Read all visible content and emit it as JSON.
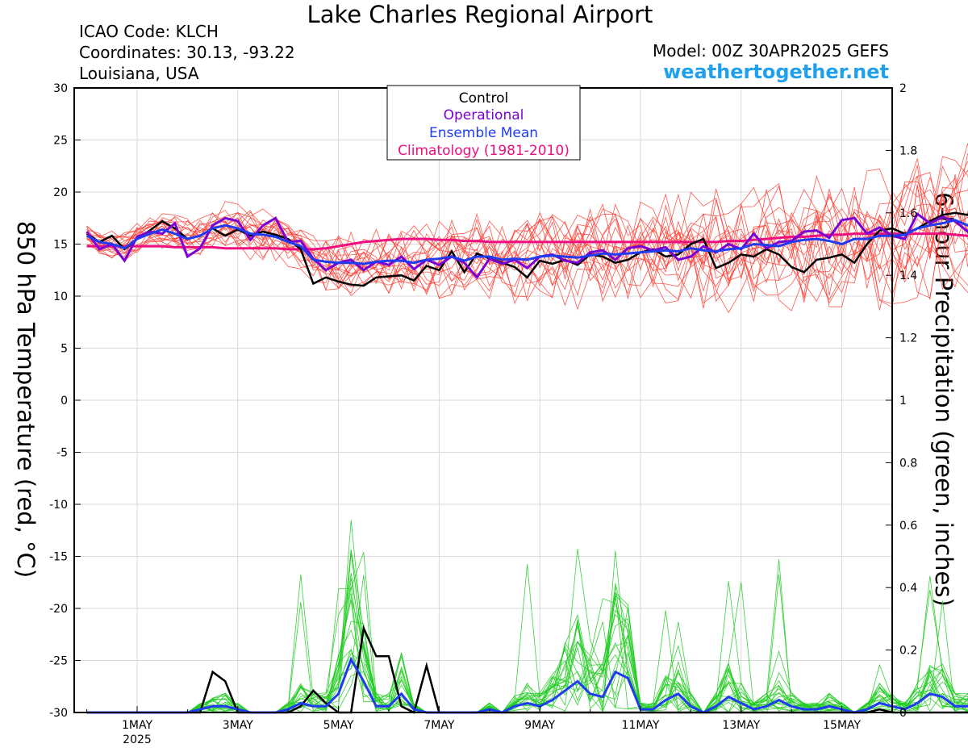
{
  "header": {
    "title": "Lake Charles Regional Airport",
    "icao": "ICAO Code: KLCH",
    "coords": "Coordinates: 30.13, -93.22",
    "region": "Louisiana, USA",
    "model": "Model: 00Z 30APR2025 GEFS",
    "site": "weathertogether.net"
  },
  "colors": {
    "members_temp": "#ff3b30",
    "members_precip": "#22cc22",
    "control": "#000000",
    "operational": "#7a00d6",
    "ensemble_mean": "#1f3cf2",
    "climatology": "#ee0e80"
  },
  "chart_data": {
    "type": "line",
    "ylabel_left": "850 hPa Temperature (red, °C)",
    "ylabel_right": "6-hour Precipitation (green, inches)",
    "ylim_left": [
      -30,
      30
    ],
    "ylim_right": [
      0,
      2
    ],
    "yticks_left": [
      "30",
      "25",
      "20",
      "15",
      "10",
      "5",
      "0",
      "-5",
      "-10",
      "-15",
      "-20",
      "-25",
      "-30"
    ],
    "yticks_right": [
      "2",
      "1.8",
      "1.6",
      "1.4",
      "1.2",
      "1",
      "0.8",
      "0.6",
      "0.4",
      "0.2",
      "0"
    ],
    "xlim_days": [
      0,
      16.25
    ],
    "x_start": "2025-04-30 00Z",
    "x_step_hours": 6,
    "xticks": [
      {
        "day": 1.25,
        "label": "1MAY",
        "sub": "2025"
      },
      {
        "day": 3.25,
        "label": "3MAY",
        "sub": ""
      },
      {
        "day": 5.25,
        "label": "5MAY",
        "sub": ""
      },
      {
        "day": 7.25,
        "label": "7MAY",
        "sub": ""
      },
      {
        "day": 9.25,
        "label": "9MAY",
        "sub": ""
      },
      {
        "day": 11.25,
        "label": "11MAY",
        "sub": ""
      },
      {
        "day": 13.25,
        "label": "13MAY",
        "sub": ""
      },
      {
        "day": 15.25,
        "label": "15MAY",
        "sub": ""
      }
    ],
    "legend": [
      "Control",
      "Operational",
      "Ensemble Mean",
      "Climatology (1981-2010)"
    ],
    "legend_position": "top-center",
    "temperature": {
      "control": [
        16,
        15.2,
        15.8,
        14.5,
        15.5,
        16.3,
        17.2,
        16.5,
        15.5,
        15.8,
        16.5,
        15.8,
        16.4,
        15.8,
        16.2,
        15.9,
        15.5,
        14.5,
        11.2,
        11.8,
        11.4,
        11.1,
        11.0,
        11.8,
        11.9,
        12.0,
        11.5,
        12.9,
        12.5,
        14.3,
        12.3,
        14.1,
        13.6,
        13.2,
        12.8,
        11.8,
        13.4,
        13.1,
        13.5,
        13.0,
        14.0,
        13.8,
        13.2,
        13.5,
        14.2,
        14.5,
        13.8,
        14.0,
        15.0,
        15.5,
        12.7,
        13.2,
        14.0,
        13.8,
        14.5,
        14.0,
        12.8,
        12.3,
        13.5,
        13.7,
        14.0,
        13.2,
        15.0,
        16.3,
        16.5,
        16.0,
        16.5,
        17.2,
        17.8,
        18.0,
        17.8,
        19.6
      ],
      "operational": [
        16.2,
        14.5,
        15.0,
        13.4,
        15.7,
        16.2,
        16.0,
        17.0,
        13.8,
        14.6,
        16.8,
        17.5,
        17.2,
        15.4,
        16.8,
        17.5,
        15.2,
        15.3,
        13.6,
        12.5,
        13.2,
        13.5,
        12.5,
        13.3,
        13.0,
        13.8,
        12.6,
        13.5,
        13.0,
        13.8,
        13.2,
        11.8,
        13.6,
        13.1,
        13.5,
        12.7,
        13.8,
        14.0,
        13.4,
        13.2,
        14.2,
        14.4,
        13.5,
        14.6,
        14.8,
        14.4,
        14.7,
        13.5,
        13.8,
        14.8,
        14.2,
        15.0,
        14.5,
        16.0,
        14.6,
        15.2,
        15.3,
        16.2,
        16.3,
        15.6,
        17.3,
        17.5,
        16.0,
        16.6,
        15.8,
        15.5,
        17.9,
        17.0,
        17.6,
        17.2,
        16.2,
        18.1
      ],
      "mean": [
        15.8,
        15.2,
        15.0,
        14.6,
        15.5,
        16.0,
        16.4,
        16.0,
        15.5,
        15.8,
        16.5,
        16.8,
        16.5,
        16.0,
        15.9,
        15.7,
        15.2,
        14.8,
        13.5,
        13.3,
        13.2,
        13.2,
        13.1,
        13.3,
        13.4,
        13.4,
        13.2,
        13.5,
        13.6,
        13.8,
        13.4,
        13.8,
        13.8,
        13.5,
        13.6,
        13.5,
        13.8,
        13.9,
        13.8,
        13.7,
        13.9,
        14.1,
        14.0,
        14.1,
        14.2,
        14.3,
        14.4,
        14.3,
        14.6,
        14.4,
        14.3,
        14.5,
        14.6,
        15.0,
        14.9,
        14.8,
        15.2,
        15.4,
        15.5,
        15.3,
        15.0,
        15.5,
        15.5,
        15.8,
        15.8,
        15.9,
        16.5,
        16.8,
        17.0,
        17.3,
        16.8,
        17.8
      ],
      "climatology": [
        14.8,
        14.8,
        14.8,
        14.8,
        14.8,
        14.8,
        14.8,
        14.7,
        14.7,
        14.7,
        14.7,
        14.6,
        14.6,
        14.6,
        14.6,
        14.6,
        14.5,
        14.5,
        14.5,
        14.6,
        14.8,
        15.0,
        15.2,
        15.3,
        15.4,
        15.5,
        15.5,
        15.5,
        15.4,
        15.4,
        15.3,
        15.3,
        15.2,
        15.2,
        15.2,
        15.2,
        15.2,
        15.2,
        15.2,
        15.2,
        15.2,
        15.2,
        15.2,
        15.2,
        15.2,
        15.2,
        15.2,
        15.2,
        15.2,
        15.2,
        15.2,
        15.3,
        15.3,
        15.4,
        15.5,
        15.6,
        15.7,
        15.7,
        15.8,
        15.9,
        15.9,
        16.0,
        16.0,
        16.0,
        16.0,
        16.0,
        16.0,
        16.0,
        16.0,
        15.9,
        15.8,
        15.7
      ]
    },
    "precipitation": {
      "control": [
        0,
        0,
        0,
        0,
        0,
        0,
        0,
        0,
        0,
        0,
        0.13,
        0.1,
        0,
        0,
        0,
        0,
        0,
        0.02,
        0.07,
        0.03,
        0,
        0,
        0.27,
        0.18,
        0.18,
        0.02,
        0,
        0.15,
        0,
        0,
        0,
        0,
        0,
        0,
        0,
        0,
        0,
        0,
        0,
        0,
        0,
        0,
        0,
        0,
        0,
        0,
        0,
        0,
        0,
        0,
        0,
        0,
        0,
        0,
        0,
        0,
        0,
        0,
        0,
        0,
        0,
        0,
        0,
        0.01,
        0,
        0,
        0,
        0,
        0,
        0,
        0,
        0
      ],
      "mean": [
        0,
        0,
        0,
        0,
        0,
        0,
        0,
        0,
        0,
        0.01,
        0.02,
        0.02,
        0.01,
        0,
        0,
        0,
        0.01,
        0.03,
        0.02,
        0.02,
        0.06,
        0.17,
        0.1,
        0.02,
        0.02,
        0.06,
        0.01,
        0,
        0,
        0,
        0,
        0,
        0.01,
        0,
        0.02,
        0.03,
        0.02,
        0.04,
        0.07,
        0.1,
        0.06,
        0.05,
        0.13,
        0.11,
        0.01,
        0.01,
        0.04,
        0.06,
        0.02,
        0,
        0.02,
        0.05,
        0.03,
        0.01,
        0.02,
        0.04,
        0.02,
        0.01,
        0.01,
        0.02,
        0.01,
        0,
        0.01,
        0.03,
        0.02,
        0.01,
        0.03,
        0.06,
        0.05,
        0.02,
        0.02,
        0.03
      ]
    }
  }
}
